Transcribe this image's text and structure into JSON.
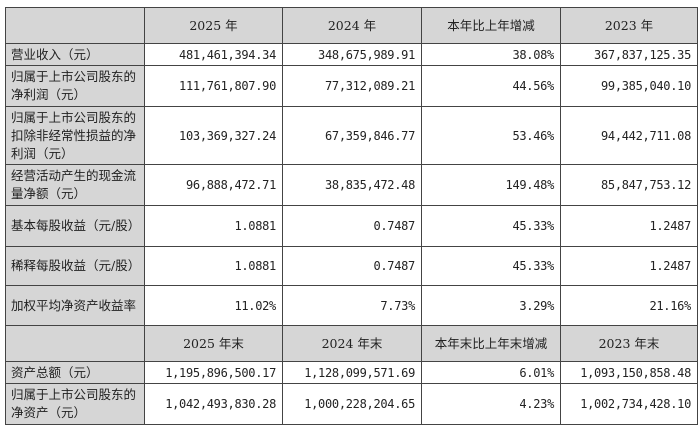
{
  "header1": [
    "",
    "2025 年",
    "2024 年",
    "本年比上年增减",
    "2023 年"
  ],
  "header2": [
    "",
    "2025 年末",
    "2024 年末",
    "本年末比上年末增减",
    "2023 年末"
  ],
  "rows1": [
    {
      "label": "营业收入（元）",
      "values": [
        "481,461,394.34",
        "348,675,989.91",
        "38.08%",
        "367,837,125.35"
      ]
    },
    {
      "label": "归属于上市公司股东的净利润（元）",
      "values": [
        "111,761,807.90",
        "77,312,089.21",
        "44.56%",
        "99,385,040.10"
      ]
    },
    {
      "label": "归属于上市公司股东的扣除非经常性损益的净利润（元）",
      "values": [
        "103,369,327.24",
        "67,359,846.77",
        "53.46%",
        "94,442,711.08"
      ]
    },
    {
      "label": "经营活动产生的现金流量净额（元）",
      "values": [
        "96,888,472.71",
        "38,835,472.48",
        "149.48%",
        "85,847,753.12"
      ]
    },
    {
      "label": "基本每股收益（元/股）",
      "values": [
        "1.0881",
        "0.7487",
        "45.33%",
        "1.2487"
      ]
    },
    {
      "label": "稀释每股收益（元/股）",
      "values": [
        "1.0881",
        "0.7487",
        "45.33%",
        "1.2487"
      ]
    },
    {
      "label": "加权平均净资产收益率",
      "values": [
        "11.02%",
        "7.73%",
        "3.29%",
        "21.16%"
      ]
    }
  ],
  "rows2": [
    {
      "label": "资产总额（元）",
      "values": [
        "1,195,896,500.17",
        "1,128,099,571.69",
        "6.01%",
        "1,093,150,858.48"
      ]
    },
    {
      "label": "归属于上市公司股东的净资产（元）",
      "values": [
        "1,042,493,830.28",
        "1,000,228,204.65",
        "4.23%",
        "1,002,734,428.10"
      ]
    }
  ]
}
